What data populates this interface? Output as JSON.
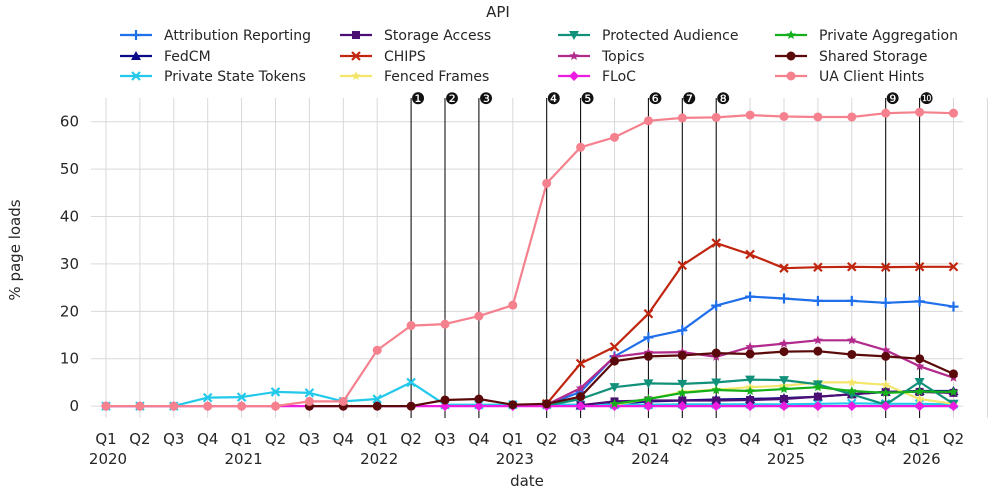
{
  "chart_data": {
    "type": "line",
    "title": "API",
    "xlabel": "date",
    "ylabel": "% page loads",
    "ylim": [
      -2.5,
      65
    ],
    "yticks": [
      0,
      10,
      20,
      30,
      40,
      50,
      60
    ],
    "grid": true,
    "legend_position": "top",
    "x_quarters": [
      "Q1",
      "Q2",
      "Q3",
      "Q4",
      "Q1",
      "Q2",
      "Q3",
      "Q4",
      "Q1",
      "Q2",
      "Q3",
      "Q4",
      "Q1",
      "Q2",
      "Q3",
      "Q4",
      "Q1",
      "Q2",
      "Q3",
      "Q4",
      "Q1",
      "Q2",
      "Q3",
      "Q4",
      "Q1",
      "Q2",
      "Q3",
      "Q4",
      "Q1",
      "Q2"
    ],
    "x_years": [
      {
        "label": "2020",
        "index": 0
      },
      {
        "label": "2021",
        "index": 4
      },
      {
        "label": "2022",
        "index": 8
      },
      {
        "label": "2023",
        "index": 12
      },
      {
        "label": "2024",
        "index": 16
      },
      {
        "label": "2025",
        "index": 20
      },
      {
        "label": "2026",
        "index": 24
      }
    ],
    "events": [
      {
        "label": "❶",
        "x": 9.0
      },
      {
        "label": "❷",
        "x": 10.0
      },
      {
        "label": "❸",
        "x": 11.0
      },
      {
        "label": "❹",
        "x": 13.0
      },
      {
        "label": "❺",
        "x": 14.0
      },
      {
        "label": "❻",
        "x": 16.0
      },
      {
        "label": "❼",
        "x": 17.0
      },
      {
        "label": "❽",
        "x": 18.0
      },
      {
        "label": "❾",
        "x": 23.0
      },
      {
        "label": "❿",
        "x": 24.0
      }
    ],
    "series": [
      {
        "name": "Attribution Reporting",
        "color": "#1f6feb",
        "marker": "plus",
        "x": [
          13,
          14,
          15,
          16,
          17,
          18,
          19,
          20,
          21,
          22,
          23,
          24,
          25
        ],
        "y": [
          0.3,
          3,
          10.5,
          14.5,
          16,
          21.2,
          23.1,
          22.7,
          22.2,
          22.2,
          21.8,
          22.1,
          21
        ]
      },
      {
        "name": "FedCM",
        "color": "#0a0a8a",
        "marker": "triangle",
        "x": [
          14,
          15,
          16,
          17,
          18,
          19,
          20,
          21,
          22,
          23,
          24,
          25
        ],
        "y": [
          0.1,
          0.5,
          1,
          1.2,
          1.4,
          1.5,
          1.7,
          2,
          2.5,
          3,
          3.2,
          3.2
        ]
      },
      {
        "name": "Private State Tokens",
        "color": "#22c9ea",
        "marker": "x",
        "x": [
          0,
          1,
          2,
          3,
          4,
          5,
          6,
          7,
          8,
          9,
          10,
          11,
          12,
          13,
          14,
          15,
          16,
          17,
          18,
          19,
          20,
          21,
          22,
          23,
          24,
          25
        ],
        "y": [
          0,
          0,
          0,
          1.8,
          1.9,
          3,
          2.8,
          1,
          1.5,
          5,
          0.3,
          0.3,
          0.3,
          0.3,
          0.3,
          0.3,
          0.3,
          0.4,
          0.4,
          0.4,
          0.4,
          0.5,
          0.6,
          0.5,
          0.5,
          0.4
        ]
      },
      {
        "name": "Storage Access",
        "color": "#4b0f73",
        "marker": "square",
        "x": [
          14,
          15,
          16,
          17,
          18,
          19,
          20,
          21,
          22,
          23,
          24,
          25
        ],
        "y": [
          0.2,
          1,
          1.2,
          1.2,
          1.2,
          1.3,
          1.5,
          2,
          2.5,
          3,
          3,
          2.8
        ]
      },
      {
        "name": "CHIPS",
        "color": "#c0260f",
        "marker": "x",
        "x": [
          13,
          14,
          15,
          16,
          17,
          18,
          19,
          20,
          21,
          22,
          23,
          24,
          25
        ],
        "y": [
          0.5,
          9,
          12.5,
          19.5,
          29.7,
          34.4,
          32,
          29.1,
          29.3,
          29.4,
          29.3,
          29.4,
          29.4
        ]
      },
      {
        "name": "Fenced Frames",
        "color": "#f3e66b",
        "marker": "star",
        "x": [
          15,
          16,
          17,
          18,
          19,
          20,
          21,
          22,
          23,
          24,
          25
        ],
        "y": [
          0.3,
          1.5,
          3,
          3.5,
          4,
          4.3,
          5,
          5,
          4.5,
          1.5,
          0.5
        ]
      },
      {
        "name": "Protected Audience",
        "color": "#11907a",
        "marker": "triangle-down",
        "x": [
          13,
          14,
          15,
          16,
          17,
          18,
          19,
          20,
          21,
          22,
          23,
          24,
          25
        ],
        "y": [
          0.1,
          1.5,
          4,
          4.8,
          4.7,
          5,
          5.6,
          5.5,
          4.6,
          2.5,
          0.3,
          5.1,
          0.5
        ]
      },
      {
        "name": "Topics",
        "color": "#b12a8c",
        "marker": "star",
        "x": [
          13,
          14,
          15,
          16,
          17,
          18,
          19,
          20,
          21,
          22,
          23,
          24,
          25
        ],
        "y": [
          0.3,
          3.8,
          10.4,
          11.3,
          11.4,
          10.4,
          12.5,
          13.2,
          13.9,
          13.9,
          11.8,
          8.4,
          6
        ]
      },
      {
        "name": "FLoC",
        "color": "#ec1ce0",
        "marker": "diamond",
        "x": [
          0,
          1,
          2,
          3,
          4,
          5,
          6,
          7,
          8,
          9,
          10,
          11,
          12,
          13,
          14,
          15,
          16,
          17,
          18,
          19,
          20,
          21,
          22,
          23,
          24,
          25
        ],
        "y": [
          0,
          0,
          0,
          0,
          0,
          0,
          0,
          0,
          0,
          0,
          0,
          0,
          0,
          0,
          0,
          0,
          0,
          0,
          0,
          0,
          0,
          0,
          0,
          0,
          0,
          0
        ]
      },
      {
        "name": "Private Aggregation",
        "color": "#14b01b",
        "marker": "star",
        "x": [
          15,
          16,
          17,
          18,
          19,
          20,
          21,
          22,
          23,
          24,
          25
        ],
        "y": [
          0.5,
          1.5,
          2.8,
          3.4,
          3.2,
          3.6,
          4,
          3.2,
          2.8,
          3.1,
          3
        ]
      },
      {
        "name": "Shared Storage",
        "color": "#5a0a0a",
        "marker": "circle",
        "x": [
          6,
          7,
          8,
          9,
          10,
          11,
          12,
          13,
          14,
          15,
          16,
          17,
          18,
          19,
          20,
          21,
          22,
          23,
          24,
          25
        ],
        "y": [
          0,
          0,
          0,
          0,
          1.3,
          1.5,
          0.3,
          0.5,
          2,
          9.5,
          10.5,
          10.7,
          11.2,
          11,
          11.5,
          11.6,
          10.9,
          10.5,
          10,
          6.8
        ]
      },
      {
        "name": "UA Client Hints",
        "color": "#f4818d",
        "marker": "circle",
        "x": [
          0,
          1,
          2,
          3,
          4,
          5,
          6,
          7,
          8,
          9,
          10,
          11,
          12,
          13,
          14,
          15,
          16,
          17,
          18,
          19,
          20,
          21,
          22,
          23,
          24,
          25
        ],
        "y": [
          0,
          0,
          0,
          0,
          0,
          0,
          1,
          1,
          11.8,
          17,
          17.3,
          19,
          21.3,
          47,
          54.6,
          56.7,
          60.2,
          60.8,
          60.9,
          61.4,
          61.1,
          61,
          61,
          61.8,
          62,
          61.8
        ]
      }
    ]
  }
}
